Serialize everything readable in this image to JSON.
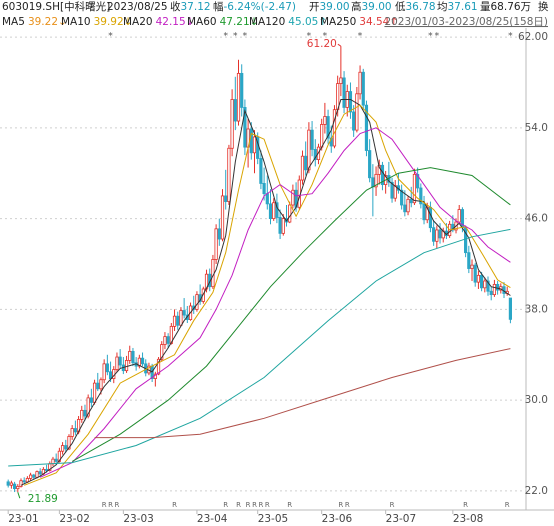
{
  "header": {
    "code": "603019.SH[中科曙光]",
    "date": "2023/08/25",
    "items": [
      {
        "label": "收",
        "value": "37.12"
      },
      {
        "label": "幅",
        "value": "-6.24%(-2.47)"
      },
      {
        "label": "开",
        "value": "39.00"
      },
      {
        "label": "高",
        "value": "39.00"
      },
      {
        "label": "低",
        "value": "36.78"
      },
      {
        "label": "均",
        "value": "37.61"
      },
      {
        "label": "量",
        "value": "68.76万"
      }
    ],
    "tail": "换",
    "range": "2023/01/03-2023/08/25(158日)"
  },
  "chart_data": {
    "type": "candlestick",
    "ylim": [
      21.2,
      62.8
    ],
    "yticks": [
      {
        "value": 62,
        "label": "62.00"
      },
      {
        "value": 54,
        "label": "54.0"
      },
      {
        "value": 46,
        "label": "46.0"
      },
      {
        "value": 38,
        "label": "38.0"
      },
      {
        "value": 30,
        "label": "30.0"
      },
      {
        "value": 22,
        "label": "22.0"
      }
    ],
    "xlim": [
      -1,
      160
    ],
    "xticks": [
      {
        "value": 0,
        "label": "23-01"
      },
      {
        "value": 16,
        "label": "23-02"
      },
      {
        "value": 36,
        "label": "23-03"
      },
      {
        "value": 59,
        "label": "23-04"
      },
      {
        "value": 78,
        "label": "23-05"
      },
      {
        "value": 98,
        "label": "23-06"
      },
      {
        "value": 118,
        "label": "23-07"
      },
      {
        "value": 139,
        "label": "23-08"
      }
    ],
    "grid": true,
    "up_color": "#e5312a",
    "down_color": "#2aa6c6",
    "candles": [
      [
        22.8,
        23.0,
        22.3,
        22.5
      ],
      [
        22.5,
        22.9,
        22.2,
        22.7
      ],
      [
        22.6,
        22.8,
        21.9,
        22.2
      ],
      [
        22.2,
        22.6,
        21.89,
        22.4
      ],
      [
        22.4,
        23.1,
        22.3,
        22.9
      ],
      [
        22.9,
        23.2,
        22.6,
        22.8
      ],
      [
        22.8,
        23.3,
        22.7,
        23.1
      ],
      [
        23.1,
        23.6,
        22.9,
        23.4
      ],
      [
        23.4,
        23.5,
        23.0,
        23.2
      ],
      [
        23.2,
        23.8,
        23.1,
        23.7
      ],
      [
        23.7,
        24.0,
        23.3,
        23.5
      ],
      [
        23.5,
        24.1,
        23.4,
        23.9
      ],
      [
        23.9,
        24.3,
        23.6,
        23.8
      ],
      [
        23.8,
        24.6,
        23.7,
        24.4
      ],
      [
        24.4,
        25.0,
        24.2,
        24.8
      ],
      [
        24.8,
        25.3,
        24.3,
        24.6
      ],
      [
        24.6,
        25.8,
        24.5,
        25.5
      ],
      [
        25.5,
        26.3,
        25.2,
        26.0
      ],
      [
        26.0,
        26.5,
        25.4,
        25.7
      ],
      [
        25.7,
        27.0,
        25.6,
        26.8
      ],
      [
        26.8,
        27.8,
        26.5,
        27.5
      ],
      [
        27.5,
        28.2,
        26.9,
        27.2
      ],
      [
        27.2,
        28.6,
        27.0,
        28.3
      ],
      [
        28.3,
        29.5,
        28.0,
        29.1
      ],
      [
        29.1,
        29.6,
        28.2,
        28.6
      ],
      [
        28.6,
        30.5,
        28.4,
        30.2
      ],
      [
        30.2,
        31.0,
        29.4,
        29.8
      ],
      [
        29.8,
        31.8,
        29.6,
        31.5
      ],
      [
        31.5,
        32.4,
        30.8,
        31.0
      ],
      [
        31.0,
        32.0,
        30.5,
        31.8
      ],
      [
        31.8,
        33.6,
        31.5,
        33.2
      ],
      [
        33.2,
        34.0,
        32.2,
        32.5
      ],
      [
        32.5,
        33.4,
        31.6,
        31.9
      ],
      [
        31.9,
        33.0,
        31.5,
        32.7
      ],
      [
        32.7,
        34.2,
        32.5,
        33.8
      ],
      [
        33.8,
        34.5,
        32.8,
        33.1
      ],
      [
        33.1,
        33.8,
        32.3,
        32.6
      ],
      [
        32.6,
        33.9,
        32.4,
        33.5
      ],
      [
        33.5,
        34.8,
        33.2,
        34.3
      ],
      [
        34.3,
        34.6,
        33.0,
        33.3
      ],
      [
        33.3,
        33.8,
        32.6,
        33.0
      ],
      [
        33.0,
        34.0,
        32.8,
        33.7
      ],
      [
        33.7,
        34.2,
        33.0,
        33.2
      ],
      [
        33.2,
        33.6,
        32.1,
        32.4
      ],
      [
        32.4,
        33.3,
        32.2,
        33.0
      ],
      [
        33.0,
        33.2,
        31.6,
        31.9
      ],
      [
        31.9,
        32.5,
        31.2,
        32.3
      ],
      [
        32.3,
        33.8,
        32.2,
        33.6
      ],
      [
        33.6,
        35.2,
        33.4,
        34.9
      ],
      [
        34.9,
        36.0,
        34.5,
        35.6
      ],
      [
        35.6,
        35.9,
        34.6,
        35.0
      ],
      [
        35.0,
        36.8,
        34.9,
        36.5
      ],
      [
        36.5,
        38.0,
        36.1,
        37.4
      ],
      [
        37.4,
        37.8,
        36.2,
        36.6
      ],
      [
        36.6,
        38.2,
        36.5,
        37.9
      ],
      [
        37.9,
        39.0,
        37.2,
        37.5
      ],
      [
        37.5,
        38.3,
        36.8,
        37.1
      ],
      [
        37.1,
        38.6,
        37.0,
        38.3
      ],
      [
        38.3,
        39.2,
        37.6,
        38.0
      ],
      [
        38.0,
        39.6,
        37.8,
        39.3
      ],
      [
        39.3,
        40.2,
        38.4,
        38.7
      ],
      [
        38.7,
        40.0,
        38.5,
        39.8
      ],
      [
        39.8,
        41.5,
        39.5,
        41.1
      ],
      [
        41.1,
        41.6,
        39.6,
        40.0
      ],
      [
        40.0,
        42.8,
        39.8,
        42.4
      ],
      [
        42.4,
        45.5,
        42.0,
        45.1
      ],
      [
        45.1,
        46.0,
        43.6,
        44.2
      ],
      [
        44.2,
        48.6,
        44.0,
        48.0
      ],
      [
        48.0,
        50.3,
        46.8,
        47.5
      ],
      [
        47.5,
        52.5,
        47.2,
        52.2
      ],
      [
        52.2,
        57.4,
        51.5,
        56.5
      ],
      [
        56.5,
        58.5,
        53.8,
        54.6
      ],
      [
        54.6,
        60.0,
        54.2,
        58.8
      ],
      [
        58.8,
        59.6,
        55.0,
        55.8
      ],
      [
        55.8,
        56.5,
        51.6,
        52.3
      ],
      [
        52.3,
        54.8,
        50.5,
        53.9
      ],
      [
        53.9,
        54.5,
        51.2,
        51.8
      ],
      [
        51.8,
        53.8,
        50.0,
        53.2
      ],
      [
        53.2,
        53.6,
        50.8,
        51.3
      ],
      [
        51.3,
        52.0,
        48.6,
        49.1
      ],
      [
        49.1,
        50.5,
        47.6,
        48.2
      ],
      [
        48.2,
        49.8,
        46.8,
        47.3
      ],
      [
        47.3,
        48.6,
        45.5,
        46.0
      ],
      [
        46.0,
        47.8,
        45.8,
        47.4
      ],
      [
        47.4,
        48.2,
        45.6,
        46.1
      ],
      [
        46.1,
        46.8,
        44.2,
        44.7
      ],
      [
        44.7,
        46.4,
        44.5,
        46.0
      ],
      [
        46.0,
        47.2,
        45.3,
        45.7
      ],
      [
        45.7,
        47.5,
        45.6,
        47.2
      ],
      [
        47.2,
        49.0,
        46.9,
        48.5
      ],
      [
        48.5,
        49.2,
        46.6,
        47.0
      ],
      [
        47.0,
        49.8,
        46.8,
        49.4
      ],
      [
        49.4,
        52.0,
        49.0,
        51.5
      ],
      [
        51.5,
        52.8,
        49.8,
        50.3
      ],
      [
        50.3,
        54.5,
        50.0,
        53.8
      ],
      [
        53.8,
        54.6,
        51.5,
        52.1
      ],
      [
        52.1,
        53.0,
        50.6,
        51.2
      ],
      [
        51.2,
        52.6,
        50.8,
        52.3
      ],
      [
        52.3,
        54.8,
        52.0,
        54.3
      ],
      [
        54.3,
        56.2,
        53.5,
        55.0
      ],
      [
        55.0,
        55.6,
        52.6,
        53.1
      ],
      [
        53.1,
        54.2,
        51.8,
        52.4
      ],
      [
        52.4,
        56.0,
        52.2,
        55.6
      ],
      [
        55.6,
        58.6,
        55.0,
        57.9
      ],
      [
        57.9,
        61.2,
        56.8,
        58.4
      ],
      [
        58.4,
        59.0,
        55.3,
        55.8
      ],
      [
        55.8,
        57.8,
        55.0,
        57.2
      ],
      [
        57.2,
        58.0,
        54.8,
        55.4
      ],
      [
        55.4,
        56.0,
        53.2,
        53.8
      ],
      [
        53.8,
        57.6,
        53.6,
        57.0
      ],
      [
        57.0,
        59.5,
        56.5,
        58.9
      ],
      [
        58.9,
        59.2,
        55.6,
        56.0
      ],
      [
        56.0,
        56.4,
        51.5,
        52.0
      ],
      [
        52.0,
        53.0,
        49.2,
        49.6
      ],
      [
        49.6,
        50.8,
        46.2,
        48.8
      ],
      [
        48.8,
        50.6,
        48.0,
        49.9
      ],
      [
        49.9,
        51.2,
        49.0,
        50.7
      ],
      [
        50.7,
        51.0,
        48.5,
        49.0
      ],
      [
        49.0,
        50.2,
        48.2,
        49.8
      ],
      [
        49.8,
        51.0,
        48.8,
        49.2
      ],
      [
        49.2,
        49.6,
        47.4,
        47.8
      ],
      [
        47.8,
        49.4,
        47.5,
        48.9
      ],
      [
        48.9,
        50.0,
        48.2,
        48.5
      ],
      [
        48.5,
        49.0,
        46.8,
        47.2
      ],
      [
        47.2,
        48.5,
        46.2,
        46.6
      ],
      [
        46.6,
        48.0,
        46.3,
        47.7
      ],
      [
        47.7,
        48.8,
        47.0,
        47.4
      ],
      [
        47.4,
        50.4,
        47.2,
        49.9
      ],
      [
        49.9,
        50.5,
        48.3,
        48.7
      ],
      [
        48.7,
        49.1,
        46.9,
        47.3
      ],
      [
        47.3,
        48.0,
        45.5,
        45.9
      ],
      [
        45.9,
        47.4,
        45.6,
        47.0
      ],
      [
        47.0,
        47.5,
        44.8,
        45.2
      ],
      [
        45.2,
        45.8,
        43.6,
        44.0
      ],
      [
        44.0,
        45.4,
        43.4,
        45.0
      ],
      [
        45.0,
        45.6,
        43.8,
        44.3
      ],
      [
        44.3,
        45.2,
        43.9,
        44.9
      ],
      [
        44.9,
        45.6,
        44.2,
        44.5
      ],
      [
        44.5,
        45.8,
        44.3,
        45.5
      ],
      [
        45.5,
        46.3,
        44.8,
        45.0
      ],
      [
        45.0,
        46.0,
        44.7,
        45.7
      ],
      [
        45.7,
        47.2,
        45.5,
        46.8
      ],
      [
        46.8,
        47.0,
        44.8,
        45.2
      ],
      [
        45.2,
        45.4,
        42.6,
        43.0
      ],
      [
        43.0,
        43.6,
        41.2,
        41.6
      ],
      [
        41.6,
        42.4,
        40.5,
        41.9
      ],
      [
        41.9,
        42.1,
        40.0,
        40.4
      ],
      [
        40.4,
        41.4,
        39.8,
        41.0
      ],
      [
        41.0,
        41.3,
        39.6,
        39.9
      ],
      [
        39.9,
        40.8,
        39.5,
        40.5
      ],
      [
        40.5,
        40.9,
        39.2,
        39.6
      ],
      [
        39.6,
        40.0,
        38.8,
        39.3
      ],
      [
        39.3,
        40.6,
        39.1,
        40.2
      ],
      [
        40.2,
        40.5,
        39.3,
        39.7
      ],
      [
        39.7,
        40.3,
        39.4,
        40.0
      ],
      [
        40.0,
        40.4,
        39.0,
        39.4
      ],
      [
        39.4,
        40.0,
        39.2,
        39.59
      ],
      [
        39.0,
        39.0,
        36.78,
        37.12
      ]
    ],
    "series": [
      {
        "name": "MA5",
        "color": "#333333",
        "label_color": "#e8901a",
        "last": "39.22↓",
        "x": [
          4,
          10,
          15,
          20,
          25,
          30,
          35,
          40,
          45,
          50,
          55,
          60,
          65,
          68,
          71,
          74,
          77,
          80,
          84,
          87,
          90,
          94,
          97,
          101,
          104,
          107,
          110,
          113,
          116,
          119,
          123,
          127,
          130,
          133,
          137,
          141,
          144,
          147,
          151,
          154,
          157
        ],
        "values": [
          22.5,
          23.3,
          24.3,
          26.2,
          28.8,
          31.2,
          32.8,
          33.2,
          32.5,
          34.6,
          37.0,
          38.8,
          41.5,
          44.5,
          51.0,
          55.5,
          53.5,
          51.0,
          47.0,
          45.8,
          47.0,
          50.5,
          51.8,
          53.8,
          56.5,
          56.5,
          56.0,
          54.5,
          50.5,
          49.3,
          48.4,
          47.6,
          47.5,
          45.8,
          44.6,
          45.6,
          44.3,
          41.5,
          40.0,
          39.8,
          39.22
        ]
      },
      {
        "name": "MA10",
        "color": "#d9a400",
        "label_color": "#d9a400",
        "last": "39.92↓",
        "x": [
          5,
          15,
          25,
          35,
          45,
          52,
          58,
          64,
          68,
          72,
          76,
          80,
          85,
          90,
          95,
          100,
          105,
          110,
          115,
          118,
          122,
          128,
          133,
          138,
          143,
          148,
          153,
          157
        ],
        "values": [
          22.5,
          23.6,
          27.0,
          31.5,
          33.0,
          34.0,
          37.0,
          39.5,
          43.0,
          48.5,
          53.5,
          53.0,
          49.0,
          46.2,
          49.0,
          52.5,
          55.2,
          56.0,
          54.5,
          52.0,
          49.5,
          47.8,
          46.8,
          45.0,
          45.3,
          43.0,
          40.6,
          39.92
        ]
      },
      {
        "name": "MA20",
        "color": "#c21fc2",
        "label_color": "#c21fc2",
        "last": "42.15↓",
        "x": [
          10,
          20,
          30,
          40,
          50,
          60,
          65,
          70,
          75,
          80,
          85,
          90,
          95,
          100,
          105,
          110,
          115,
          120,
          125,
          130,
          135,
          140,
          145,
          150,
          157
        ],
        "values": [
          23.2,
          24.5,
          27.5,
          31.0,
          33.0,
          35.5,
          38.0,
          41.0,
          45.0,
          48.0,
          49.0,
          48.0,
          48.2,
          50.0,
          52.0,
          53.5,
          54.0,
          53.0,
          51.0,
          49.0,
          47.0,
          45.8,
          45.0,
          43.5,
          42.15
        ]
      },
      {
        "name": "MA60",
        "color": "#1f8a2e",
        "label_color": "#1f9a2e",
        "last": "47.21↓",
        "x": [
          20,
          35,
          50,
          62,
          72,
          82,
          92,
          102,
          112,
          122,
          132,
          145,
          157
        ],
        "values": [
          24.6,
          27.0,
          30.0,
          33.0,
          36.5,
          40.0,
          43.0,
          45.8,
          48.5,
          50.0,
          50.5,
          49.8,
          47.21
        ]
      },
      {
        "name": "MA120",
        "color": "#1fa5a0",
        "label_color": "#1fa5b0",
        "last": "45.05↑",
        "x": [
          0,
          20,
          40,
          60,
          80,
          100,
          115,
          130,
          145,
          157
        ],
        "values": [
          24.2,
          24.5,
          26.0,
          28.4,
          32.0,
          37.0,
          40.5,
          43.0,
          44.4,
          45.05
        ]
      },
      {
        "name": "MA250",
        "color": "#b0504a",
        "label_color": "#e03a3a",
        "last": "34.54↑",
        "x": [
          27,
          45,
          60,
          80,
          100,
          120,
          140,
          157
        ],
        "values": [
          26.7,
          26.7,
          27.0,
          28.4,
          30.2,
          32.0,
          33.5,
          34.54
        ]
      }
    ],
    "annotations": [
      {
        "text": "61.20",
        "x": 104,
        "y": 61.2,
        "color": "#e03a3a"
      },
      {
        "text": "21.89",
        "x": 3,
        "y": 21.89,
        "color": "#1f9a2e"
      }
    ],
    "top_markers": {
      "label": "*",
      "x": [
        32,
        68,
        71,
        74,
        94,
        99,
        110,
        132,
        134,
        157
      ]
    },
    "bottom_markers": {
      "label": "R",
      "x": [
        30,
        32,
        34,
        52,
        68,
        72,
        75,
        77,
        79,
        81,
        88,
        104,
        106,
        120,
        143,
        156
      ]
    }
  }
}
